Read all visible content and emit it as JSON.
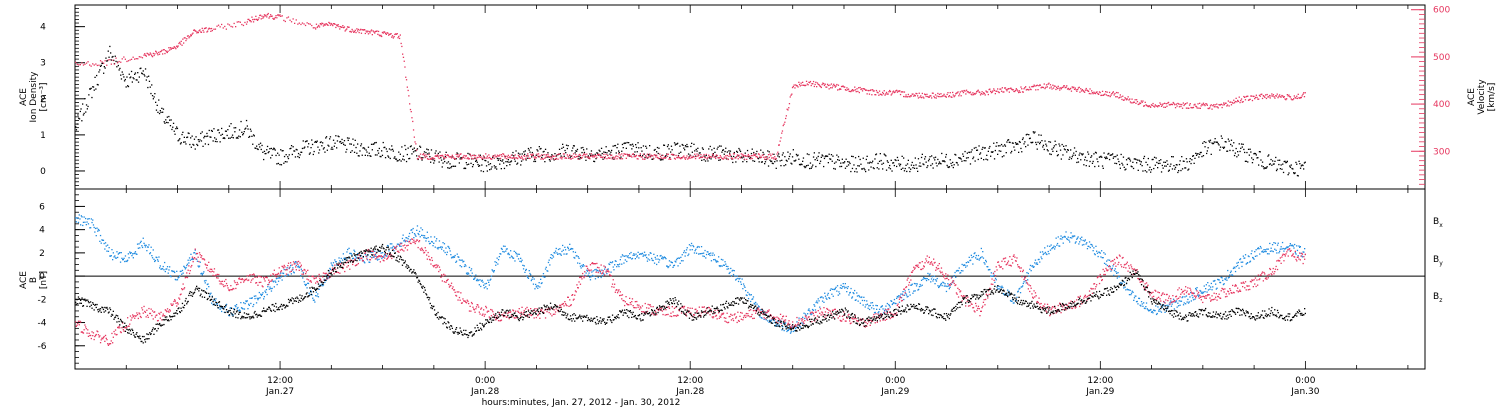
{
  "chart_data": [
    {
      "type": "scatter",
      "panel": "top",
      "left_axis_label_1": "ACE",
      "left_axis_label_2": "Ion Density",
      "left_axis_unit": "[cm⁻³]",
      "right_axis_label_1": "ACE",
      "right_axis_label_2": "Velocity",
      "right_axis_unit": "[km/s]",
      "ylim_left": [
        -0.5,
        4.6
      ],
      "ylim_right": [
        220,
        610
      ],
      "yticks_left": [
        "0",
        "1",
        "2",
        "3",
        "4"
      ],
      "yticks_right": [
        "300",
        "400",
        "500",
        "600"
      ],
      "series": [
        {
          "name": "Ion Density",
          "color": "#000000",
          "axis": "left",
          "x": [
            0,
            1,
            2,
            3,
            4,
            5,
            6,
            7,
            8,
            9,
            10,
            11,
            12,
            13,
            14,
            15,
            16,
            17,
            18,
            19,
            20,
            21,
            22,
            23,
            24,
            25,
            26,
            27,
            28,
            29,
            30,
            31,
            32,
            33,
            34,
            35,
            36,
            37,
            38,
            39,
            40,
            41,
            42,
            43,
            44,
            45,
            46,
            47,
            48,
            49,
            50,
            51,
            52,
            53,
            54,
            55,
            56,
            57,
            58,
            59,
            60,
            61,
            62,
            63,
            64,
            65,
            66,
            67,
            68,
            69,
            70,
            71,
            72
          ],
          "y": [
            1.2,
            2.3,
            3.3,
            2.5,
            2.8,
            1.6,
            1.0,
            0.8,
            1.0,
            1.1,
            1.2,
            0.5,
            0.4,
            0.6,
            0.7,
            0.8,
            0.7,
            0.6,
            0.6,
            0.5,
            0.5,
            0.4,
            0.3,
            0.3,
            0.2,
            0.3,
            0.4,
            0.5,
            0.5,
            0.6,
            0.5,
            0.5,
            0.6,
            0.6,
            0.5,
            0.6,
            0.6,
            0.5,
            0.5,
            0.4,
            0.4,
            0.3,
            0.4,
            0.3,
            0.3,
            0.2,
            0.2,
            0.3,
            0.2,
            0.2,
            0.3,
            0.3,
            0.4,
            0.5,
            0.6,
            0.7,
            0.9,
            0.7,
            0.5,
            0.4,
            0.3,
            0.3,
            0.2,
            0.2,
            0.2,
            0.2,
            0.6,
            0.8,
            0.6,
            0.4,
            0.2,
            0.1,
            0.1
          ]
        },
        {
          "name": "Velocity",
          "color": "#e6365f",
          "axis": "right",
          "x": [
            0,
            2,
            4,
            5,
            6,
            7,
            8,
            10,
            11,
            12,
            14,
            15,
            16,
            17,
            18,
            19,
            20,
            21,
            22,
            23,
            24,
            25,
            26,
            27,
            28,
            29,
            30,
            31,
            32,
            33,
            34,
            35,
            36,
            37,
            38,
            39,
            40,
            41,
            42,
            43,
            44,
            45,
            46,
            47,
            48,
            49,
            50,
            51,
            52,
            53,
            54,
            55,
            56,
            57,
            58,
            59,
            60,
            61,
            62,
            63,
            64,
            65,
            66,
            67,
            68,
            69,
            70,
            71,
            72
          ],
          "y": [
            485,
            490,
            505,
            510,
            525,
            555,
            560,
            575,
            590,
            585,
            565,
            570,
            560,
            555,
            550,
            545,
            290,
            290,
            290,
            290,
            290,
            290,
            290,
            290,
            290,
            290,
            290,
            290,
            290,
            290,
            290,
            290,
            290,
            290,
            290,
            290,
            290,
            290,
            440,
            445,
            440,
            435,
            430,
            425,
            425,
            420,
            420,
            420,
            425,
            425,
            430,
            430,
            435,
            440,
            435,
            430,
            425,
            420,
            405,
            400,
            400,
            398,
            398,
            395,
            410,
            415,
            420,
            415,
            420
          ]
        }
      ]
    },
    {
      "type": "scatter",
      "panel": "bottom",
      "left_axis_label_1": "ACE",
      "left_axis_label_2": "B",
      "left_axis_unit": "[nT]",
      "ylim": [
        -8,
        7.5
      ],
      "yticks": [
        "-6",
        "-4",
        "-2",
        "0",
        "2",
        "4",
        "6"
      ],
      "legend": [
        "B",
        "B",
        "B"
      ],
      "legend_subscripts": [
        "x",
        "y",
        "z"
      ],
      "series": [
        {
          "name": "Bx",
          "color": "#000000",
          "x": [
            0,
            1,
            2,
            3,
            4,
            5,
            6,
            7,
            8,
            9,
            10,
            11,
            12,
            13,
            14,
            15,
            16,
            17,
            18,
            19,
            20,
            21,
            22,
            23,
            24,
            25,
            26,
            27,
            28,
            29,
            30,
            31,
            32,
            33,
            34,
            35,
            36,
            37,
            38,
            39,
            40,
            41,
            42,
            43,
            44,
            45,
            46,
            47,
            48,
            49,
            50,
            51,
            52,
            53,
            54,
            55,
            56,
            57,
            58,
            59,
            60,
            61,
            62,
            63,
            64,
            65,
            66,
            67,
            68,
            69,
            70,
            71,
            72
          ],
          "y": [
            -2.0,
            -2.5,
            -3.0,
            -4.5,
            -5.5,
            -4.0,
            -3.0,
            -1.0,
            -2.0,
            -3.0,
            -3.5,
            -3.0,
            -2.5,
            -2.0,
            -1.0,
            0.5,
            1.5,
            2.0,
            2.5,
            1.5,
            0.0,
            -3.0,
            -4.5,
            -5.0,
            -4.0,
            -3.0,
            -3.5,
            -3.0,
            -2.5,
            -3.5,
            -3.5,
            -4.0,
            -3.0,
            -3.5,
            -3.0,
            -2.0,
            -3.5,
            -3.0,
            -2.5,
            -2.0,
            -3.0,
            -4.0,
            -4.5,
            -4.0,
            -3.5,
            -3.0,
            -4.0,
            -3.5,
            -3.0,
            -2.5,
            -3.0,
            -3.5,
            -2.0,
            -1.5,
            -1.0,
            -2.0,
            -2.5,
            -3.0,
            -2.5,
            -2.0,
            -1.5,
            -1.0,
            0.5,
            -2.0,
            -3.0,
            -3.5,
            -3.0,
            -3.5,
            -3.0,
            -3.5,
            -3.0,
            -3.5,
            -3.0
          ]
        },
        {
          "name": "By",
          "color": "#1f8be0",
          "x": [
            0,
            1,
            2,
            3,
            4,
            5,
            6,
            7,
            8,
            9,
            10,
            11,
            12,
            13,
            14,
            15,
            16,
            17,
            18,
            19,
            20,
            21,
            22,
            23,
            24,
            25,
            26,
            27,
            28,
            29,
            30,
            31,
            32,
            33,
            34,
            35,
            36,
            37,
            38,
            39,
            40,
            41,
            42,
            43,
            44,
            45,
            46,
            47,
            48,
            49,
            50,
            51,
            52,
            53,
            54,
            55,
            56,
            57,
            58,
            59,
            60,
            61,
            62,
            63,
            64,
            65,
            66,
            67,
            68,
            69,
            70,
            71,
            72
          ],
          "y": [
            5.0,
            4.5,
            2.0,
            1.5,
            3.0,
            1.0,
            0.0,
            2.0,
            -2.0,
            -3.0,
            -2.5,
            -1.5,
            0.0,
            1.0,
            -2.0,
            1.0,
            2.0,
            1.5,
            2.0,
            3.0,
            4.0,
            3.0,
            2.0,
            0.5,
            -1.0,
            2.5,
            1.5,
            -1.0,
            2.0,
            2.5,
            0.0,
            0.5,
            1.5,
            2.0,
            1.5,
            1.0,
            2.5,
            2.0,
            1.0,
            -0.5,
            -3.0,
            -4.0,
            -4.5,
            -3.0,
            -1.5,
            -1.0,
            -2.0,
            -3.0,
            -2.0,
            -1.0,
            0.0,
            -1.0,
            1.0,
            2.0,
            -1.0,
            -2.0,
            1.0,
            2.5,
            3.5,
            3.0,
            2.0,
            0.0,
            -2.0,
            -3.0,
            -2.5,
            -2.0,
            -1.0,
            -0.5,
            1.0,
            2.0,
            2.5,
            2.5,
            2.0
          ]
        },
        {
          "name": "Bz",
          "color": "#e6365f",
          "x": [
            0,
            1,
            2,
            3,
            4,
            5,
            6,
            7,
            8,
            9,
            10,
            11,
            12,
            13,
            14,
            15,
            16,
            17,
            18,
            19,
            20,
            21,
            22,
            23,
            24,
            25,
            26,
            27,
            28,
            29,
            30,
            31,
            32,
            33,
            34,
            35,
            36,
            37,
            38,
            39,
            40,
            41,
            42,
            43,
            44,
            45,
            46,
            47,
            48,
            49,
            50,
            51,
            52,
            53,
            54,
            55,
            56,
            57,
            58,
            59,
            60,
            61,
            62,
            63,
            64,
            65,
            66,
            67,
            68,
            69,
            70,
            71,
            72
          ],
          "y": [
            -4.0,
            -5.0,
            -5.5,
            -4.0,
            -3.0,
            -3.5,
            -2.0,
            2.0,
            0.5,
            -1.0,
            0.0,
            -0.5,
            0.5,
            1.0,
            -0.5,
            0.5,
            1.0,
            2.0,
            1.5,
            2.5,
            3.0,
            1.0,
            -1.0,
            -2.5,
            -3.0,
            -3.5,
            -3.0,
            -3.2,
            -3.0,
            -2.0,
            1.0,
            0.5,
            -2.0,
            -2.5,
            -3.0,
            -3.0,
            -3.0,
            -3.0,
            -3.5,
            -3.5,
            -3.0,
            -3.5,
            -4.0,
            -3.5,
            -3.0,
            -3.5,
            -4.0,
            -3.5,
            -3.0,
            0.5,
            1.5,
            0.0,
            -2.0,
            -3.0,
            1.0,
            1.5,
            -1.5,
            -3.0,
            -2.5,
            -2.0,
            0.0,
            1.5,
            0.5,
            -1.5,
            -2.0,
            -1.0,
            -2.0,
            -1.5,
            -1.0,
            -0.5,
            0.5,
            2.0,
            1.5
          ]
        }
      ]
    }
  ],
  "x_axis": {
    "xlabel": "hours:minutes, Jan. 27, 2012 - Jan. 30, 2012",
    "tick_times": [
      "12:00",
      "0:00",
      "12:00",
      "0:00",
      "12:00",
      "0:00"
    ],
    "tick_dates": [
      "Jan.27",
      "Jan.28",
      "Jan.28",
      "Jan.29",
      "Jan.29",
      "Jan.30"
    ],
    "tick_hours": [
      12,
      24,
      36,
      48,
      60,
      72
    ],
    "xlim_hours": [
      0,
      79
    ]
  }
}
